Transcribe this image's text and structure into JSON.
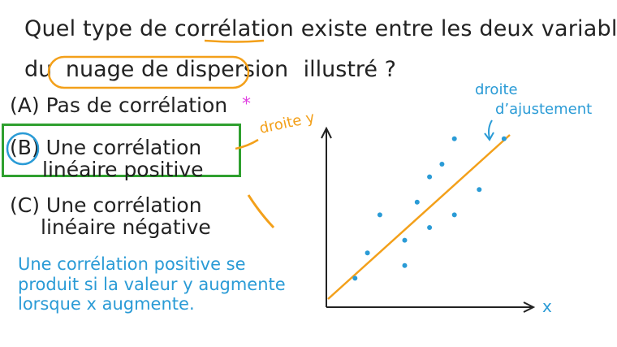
{
  "question": {
    "line1": "Quel type de corrélation existe entre les deux variables",
    "line2_prefix": "du",
    "line2_circled": "nuage de dispersion",
    "line2_suffix": "illustré ?"
  },
  "options": {
    "a": {
      "letter": "(A)",
      "text": "Pas de corrélation"
    },
    "b": {
      "letter": "(B)",
      "line1": "Une corrélation",
      "line2": "linéaire positive"
    },
    "c": {
      "letter": "(C)",
      "line1": "Une corrélation",
      "line2": "linéaire négative"
    }
  },
  "star": "*",
  "explanation": {
    "line1": "Une corrélation positive se",
    "line2": "produit si la valeur y augmente",
    "line3": "lorsque x augmente."
  },
  "annotations": {
    "droite_y": "droite y",
    "droite_ajustement_1": "droite",
    "droite_ajustement_2": "d’ajustement",
    "x_axis": "x"
  },
  "colors": {
    "text": "#222222",
    "blue": "#2a9bd6",
    "orange": "#f3a01a",
    "green": "#2fa02f",
    "magenta": "#e040e0"
  },
  "scatter_points": [
    {
      "x": 1,
      "y": 1
    },
    {
      "x": 2,
      "y": 3
    },
    {
      "x": 3,
      "y": 6
    },
    {
      "x": 5,
      "y": 2
    },
    {
      "x": 5,
      "y": 4
    },
    {
      "x": 6,
      "y": 7
    },
    {
      "x": 7,
      "y": 9
    },
    {
      "x": 7,
      "y": 5
    },
    {
      "x": 8,
      "y": 10
    },
    {
      "x": 9,
      "y": 6
    },
    {
      "x": 9,
      "y": 12
    },
    {
      "x": 11,
      "y": 8
    },
    {
      "x": 13,
      "y": 12
    }
  ]
}
